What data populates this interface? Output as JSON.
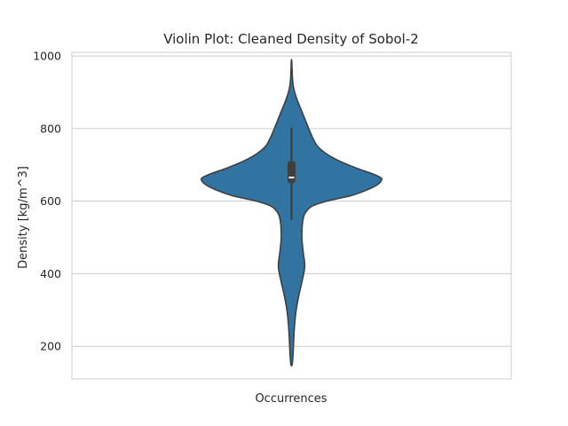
{
  "chart_data": {
    "type": "violin",
    "title": "Violin Plot: Cleaned Density of Sobol-2",
    "xlabel": "Occurrences",
    "ylabel": "Density [kg/m^3]",
    "ylim": [
      110,
      1010
    ],
    "yticks": [
      200,
      400,
      600,
      800,
      1000
    ],
    "grid": "horizontal",
    "color": "#3274a1",
    "edge_color": "#3f3f3f",
    "grid_color": "#cccccc",
    "spine_color": "#cccccc",
    "violin": {
      "min": 150,
      "max": 985,
      "median": 665,
      "q1": 650,
      "q3": 710,
      "whisker_low": 548,
      "whisker_high": 803,
      "profile": [
        {
          "y": 150,
          "halfwidth": 0.003
        },
        {
          "y": 180,
          "halfwidth": 0.007
        },
        {
          "y": 220,
          "halfwidth": 0.01
        },
        {
          "y": 260,
          "halfwidth": 0.014
        },
        {
          "y": 300,
          "halfwidth": 0.021
        },
        {
          "y": 340,
          "halfwidth": 0.033
        },
        {
          "y": 380,
          "halfwidth": 0.048
        },
        {
          "y": 420,
          "halfwidth": 0.06
        },
        {
          "y": 460,
          "halfwidth": 0.053
        },
        {
          "y": 500,
          "halfwidth": 0.047
        },
        {
          "y": 540,
          "halfwidth": 0.05
        },
        {
          "y": 565,
          "halfwidth": 0.06
        },
        {
          "y": 585,
          "halfwidth": 0.09
        },
        {
          "y": 600,
          "halfwidth": 0.16
        },
        {
          "y": 615,
          "halfwidth": 0.27
        },
        {
          "y": 630,
          "halfwidth": 0.34
        },
        {
          "y": 645,
          "halfwidth": 0.39
        },
        {
          "y": 658,
          "halfwidth": 0.41
        },
        {
          "y": 665,
          "halfwidth": 0.405
        },
        {
          "y": 675,
          "halfwidth": 0.37
        },
        {
          "y": 690,
          "halfwidth": 0.3
        },
        {
          "y": 710,
          "halfwidth": 0.22
        },
        {
          "y": 730,
          "halfwidth": 0.16
        },
        {
          "y": 750,
          "halfwidth": 0.12
        },
        {
          "y": 770,
          "halfwidth": 0.1
        },
        {
          "y": 790,
          "halfwidth": 0.085
        },
        {
          "y": 820,
          "halfwidth": 0.065
        },
        {
          "y": 850,
          "halfwidth": 0.045
        },
        {
          "y": 880,
          "halfwidth": 0.025
        },
        {
          "y": 910,
          "halfwidth": 0.01
        },
        {
          "y": 940,
          "halfwidth": 0.004
        },
        {
          "y": 985,
          "halfwidth": 0.001
        }
      ]
    }
  }
}
